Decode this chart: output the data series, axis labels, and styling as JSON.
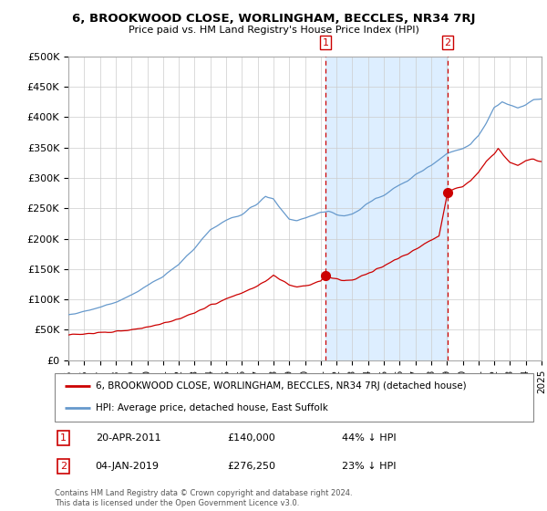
{
  "title": "6, BROOKWOOD CLOSE, WORLINGHAM, BECCLES, NR34 7RJ",
  "subtitle": "Price paid vs. HM Land Registry's House Price Index (HPI)",
  "ylim": [
    0,
    500000
  ],
  "yticks": [
    0,
    50000,
    100000,
    150000,
    200000,
    250000,
    300000,
    350000,
    400000,
    450000,
    500000
  ],
  "ytick_labels": [
    "£0",
    "£50K",
    "£100K",
    "£150K",
    "£200K",
    "£250K",
    "£300K",
    "£350K",
    "£400K",
    "£450K",
    "£500K"
  ],
  "hpi_color": "#6699cc",
  "hpi_fill_color": "#ddeeff",
  "sale_color": "#cc0000",
  "annotation_color": "#cc0000",
  "sale_points": [
    {
      "year": 2011.3,
      "price": 140000,
      "label": "1"
    },
    {
      "year": 2019.04,
      "price": 276250,
      "label": "2"
    }
  ],
  "annotation_rows": [
    {
      "label": "1",
      "date": "20-APR-2011",
      "price": "£140,000",
      "pct": "44% ↓ HPI"
    },
    {
      "label": "2",
      "date": "04-JAN-2019",
      "price": "£276,250",
      "pct": "23% ↓ HPI"
    }
  ],
  "legend_entries": [
    {
      "color": "#cc0000",
      "text": "6, BROOKWOOD CLOSE, WORLINGHAM, BECCLES, NR34 7RJ (detached house)"
    },
    {
      "color": "#6699cc",
      "text": "HPI: Average price, detached house, East Suffolk"
    }
  ],
  "footer": "Contains HM Land Registry data © Crown copyright and database right 2024.\nThis data is licensed under the Open Government Licence v3.0.",
  "xmin": 1995.0,
  "xmax": 2025.0
}
